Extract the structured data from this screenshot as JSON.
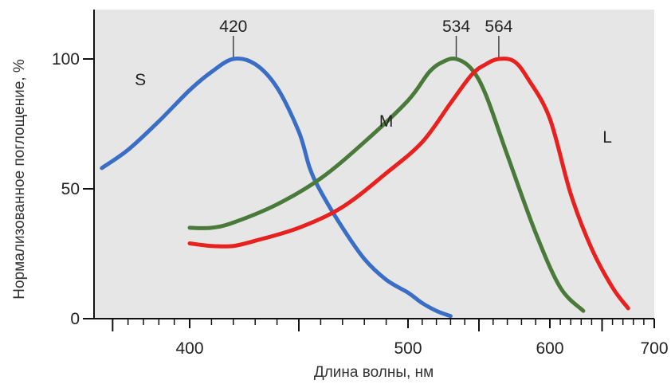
{
  "chart_data": {
    "type": "line",
    "xlabel": "Длина волны, нм",
    "ylabel": "Нормализованное поглощение, %",
    "xlim": [
      340,
      700
    ],
    "ylim": [
      0,
      100
    ],
    "x_ticks": [
      400,
      500,
      600,
      700
    ],
    "y_ticks": [
      0,
      50,
      100
    ],
    "grid": false,
    "background": "#e6e6e6",
    "series": [
      {
        "name": "S",
        "color": "#3a6ec6",
        "peak": "420",
        "x": [
          343,
          360,
          380,
          400,
          410,
          420,
          430,
          440,
          450,
          455,
          460,
          470,
          480,
          490,
          500,
          510,
          520,
          530
        ],
        "y": [
          58,
          65,
          76,
          88,
          95,
          100,
          98,
          89,
          72,
          58,
          49,
          35,
          23,
          15,
          10,
          6,
          3,
          1
        ]
      },
      {
        "name": "M",
        "color": "#4a7a3a",
        "peak": "534",
        "x": [
          400,
          410,
          420,
          440,
          460,
          480,
          500,
          515,
          525,
          534,
          545,
          555,
          570,
          590,
          610,
          632
        ],
        "y": [
          35,
          35,
          37,
          44,
          54,
          68,
          84,
          95,
          99,
          100,
          96,
          86,
          63,
          33,
          12,
          3
        ]
      },
      {
        "name": "L",
        "color": "#e8201e",
        "peak": "564",
        "x": [
          400,
          410,
          420,
          430,
          450,
          470,
          490,
          510,
          530,
          545,
          555,
          564,
          575,
          585,
          600,
          620,
          640,
          660,
          675
        ],
        "y": [
          29,
          28,
          28,
          30,
          35,
          43,
          56,
          68,
          83,
          94,
          98,
          100,
          99,
          92,
          77,
          48,
          27,
          12,
          4
        ]
      }
    ]
  }
}
